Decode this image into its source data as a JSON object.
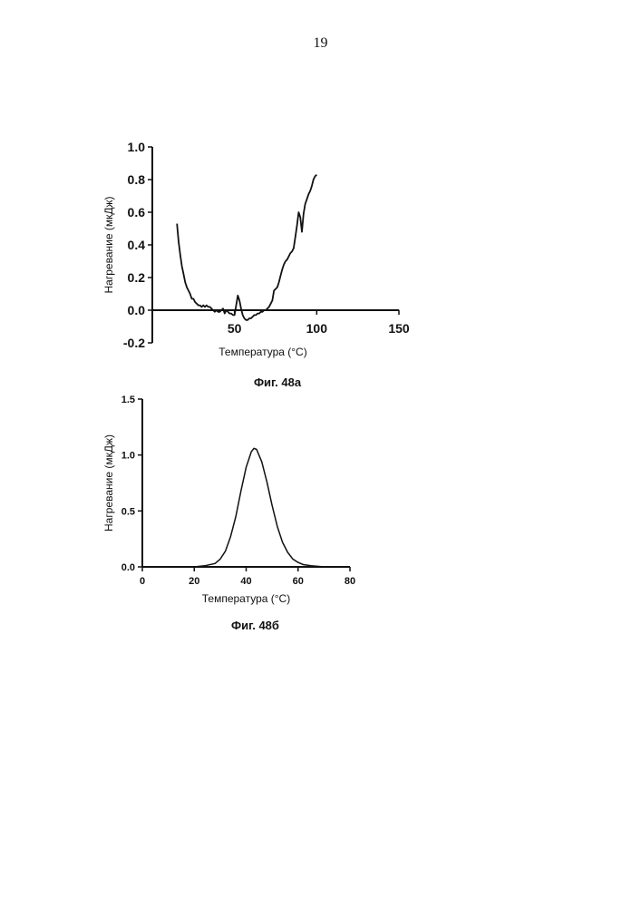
{
  "page": {
    "number": "19"
  },
  "chart_data": [
    {
      "type": "line",
      "caption": "Фиг. 48а",
      "title": "",
      "xlabel": "Температура (°C)",
      "ylabel": "Нагревание (мкДж)",
      "xlim": [
        0,
        150
      ],
      "ylim": [
        -0.2,
        1.0
      ],
      "xticks": [
        "50",
        "100",
        "150"
      ],
      "yticks": [
        "-0.2",
        "0.0",
        "0.2",
        "0.4",
        "0.6",
        "0.8",
        "1.0"
      ],
      "grid": false,
      "series": [
        {
          "x": [
            15,
            16,
            17,
            18,
            19,
            20,
            21,
            22,
            23,
            24,
            25,
            26,
            27,
            28,
            29,
            30,
            31,
            32,
            33,
            34,
            35,
            36,
            37,
            38,
            39,
            40,
            41,
            42,
            43,
            44,
            45,
            46,
            47,
            48,
            49,
            50,
            51,
            52,
            53,
            54,
            55,
            56,
            57,
            58,
            59,
            60,
            61,
            62,
            63,
            64,
            65,
            66,
            67,
            68,
            69,
            70,
            71,
            72,
            73,
            74,
            75,
            76,
            77,
            78,
            79,
            80,
            81,
            82,
            83,
            84,
            85,
            86,
            87,
            88,
            89,
            90,
            91,
            92,
            93,
            94,
            95,
            96,
            97,
            98,
            99,
            100
          ],
          "y": [
            0.53,
            0.42,
            0.34,
            0.27,
            0.22,
            0.17,
            0.14,
            0.12,
            0.1,
            0.07,
            0.07,
            0.05,
            0.04,
            0.03,
            0.03,
            0.02,
            0.03,
            0.02,
            0.03,
            0.02,
            0.02,
            0.01,
            0.0,
            -0.01,
            0.0,
            -0.01,
            -0.01,
            0.0,
            0.01,
            -0.02,
            0.0,
            -0.01,
            -0.02,
            -0.02,
            -0.03,
            -0.03,
            0.03,
            0.09,
            0.06,
            0.01,
            -0.03,
            -0.05,
            -0.06,
            -0.06,
            -0.05,
            -0.05,
            -0.04,
            -0.03,
            -0.03,
            -0.02,
            -0.02,
            -0.01,
            -0.01,
            0.0,
            0.0,
            0.01,
            0.02,
            0.04,
            0.06,
            0.12,
            0.13,
            0.14,
            0.17,
            0.21,
            0.25,
            0.28,
            0.3,
            0.31,
            0.33,
            0.35,
            0.36,
            0.38,
            0.45,
            0.52,
            0.6,
            0.57,
            0.48,
            0.59,
            0.65,
            0.68,
            0.71,
            0.73,
            0.76,
            0.8,
            0.82,
            0.83
          ]
        }
      ]
    },
    {
      "type": "line",
      "caption": "Фиг. 48б",
      "title": "",
      "xlabel": "Температура (°C)",
      "ylabel": "Нагревание (мкДж)",
      "xlim": [
        0,
        80
      ],
      "ylim": [
        0,
        1.5
      ],
      "xticks": [
        "0",
        "20",
        "40",
        "60",
        "80"
      ],
      "yticks": [
        "0.0",
        "0.5",
        "1.0",
        "1.5"
      ],
      "grid": false,
      "series": [
        {
          "x": [
            10,
            15,
            20,
            24,
            28,
            30,
            32,
            34,
            36,
            38,
            40,
            42,
            43,
            44,
            46,
            48,
            50,
            52,
            54,
            56,
            58,
            60,
            62,
            65,
            70,
            75
          ],
          "y": [
            0.0,
            0.0,
            0.0,
            0.01,
            0.03,
            0.07,
            0.14,
            0.27,
            0.45,
            0.68,
            0.89,
            1.03,
            1.06,
            1.05,
            0.94,
            0.76,
            0.55,
            0.36,
            0.22,
            0.13,
            0.07,
            0.04,
            0.02,
            0.01,
            0.0,
            0.0
          ]
        }
      ]
    }
  ]
}
